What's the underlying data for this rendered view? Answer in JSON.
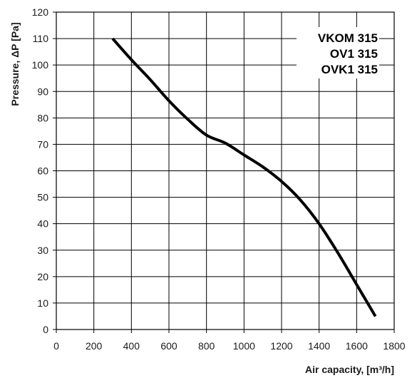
{
  "chart_data": {
    "type": "line",
    "xlabel": "Air capacity, [m³/h]",
    "ylabel": "Pressure, ΔP [Pa]",
    "xlim": [
      0,
      1800
    ],
    "ylim": [
      0,
      120
    ],
    "x_ticks": [
      0,
      200,
      400,
      600,
      800,
      1000,
      1200,
      1400,
      1600,
      1800
    ],
    "y_ticks": [
      0,
      10,
      20,
      30,
      40,
      50,
      60,
      70,
      80,
      90,
      100,
      110,
      120
    ],
    "grid": true,
    "legend_position": "top-right",
    "legend_entries": [
      "VKOM 315",
      "OV1 315",
      "OVK1 315"
    ],
    "series": [
      {
        "x": [
          300,
          400,
          500,
          600,
          700,
          800,
          900,
          1000,
          1100,
          1200,
          1300,
          1400,
          1500,
          1600,
          1700
        ],
        "y": [
          110,
          102,
          94.5,
          86.5,
          79.5,
          73.5,
          70.5,
          66,
          61.5,
          56,
          49,
          40,
          29,
          17,
          5
        ]
      }
    ],
    "colors": {
      "line": "#000000",
      "grid": "#000000",
      "text": "#1a1a1a"
    }
  }
}
